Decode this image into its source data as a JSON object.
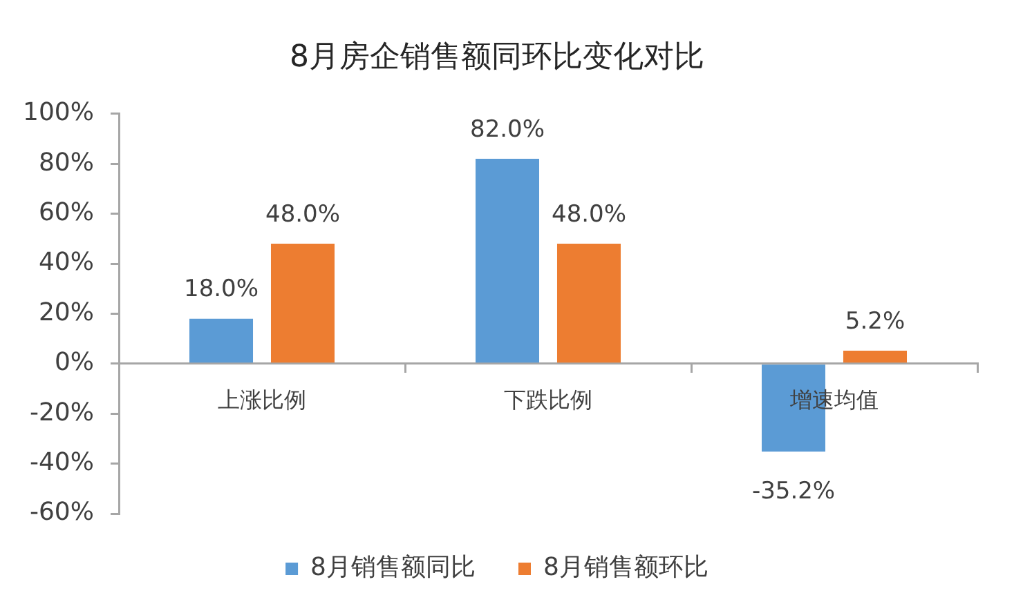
{
  "chart_data": {
    "type": "bar",
    "title": "8月房企销售额同环比变化对比",
    "categories": [
      "上涨比例",
      "下跌比例",
      "增速均值"
    ],
    "series": [
      {
        "name": "8月销售额同比",
        "color": "#5b9bd5",
        "values": [
          18.0,
          82.0,
          -35.2
        ],
        "value_labels": [
          "18.0%",
          "82.0%",
          "-35.2%"
        ]
      },
      {
        "name": "8月销售额环比",
        "color": "#ed7d31",
        "values": [
          48.0,
          48.0,
          5.2
        ],
        "value_labels": [
          "48.0%",
          "48.0%",
          "5.2%"
        ]
      }
    ],
    "ylim": [
      -60,
      100
    ],
    "yticks": [
      {
        "value": -60,
        "label": "-60%"
      },
      {
        "value": -40,
        "label": "-40%"
      },
      {
        "value": -20,
        "label": "-20%"
      },
      {
        "value": 0,
        "label": "0%"
      },
      {
        "value": 20,
        "label": "20%"
      },
      {
        "value": 40,
        "label": "40%"
      },
      {
        "value": 60,
        "label": "60%"
      },
      {
        "value": 80,
        "label": "80%"
      },
      {
        "value": 100,
        "label": "100%"
      }
    ],
    "grid": false,
    "legend": "bottom"
  }
}
